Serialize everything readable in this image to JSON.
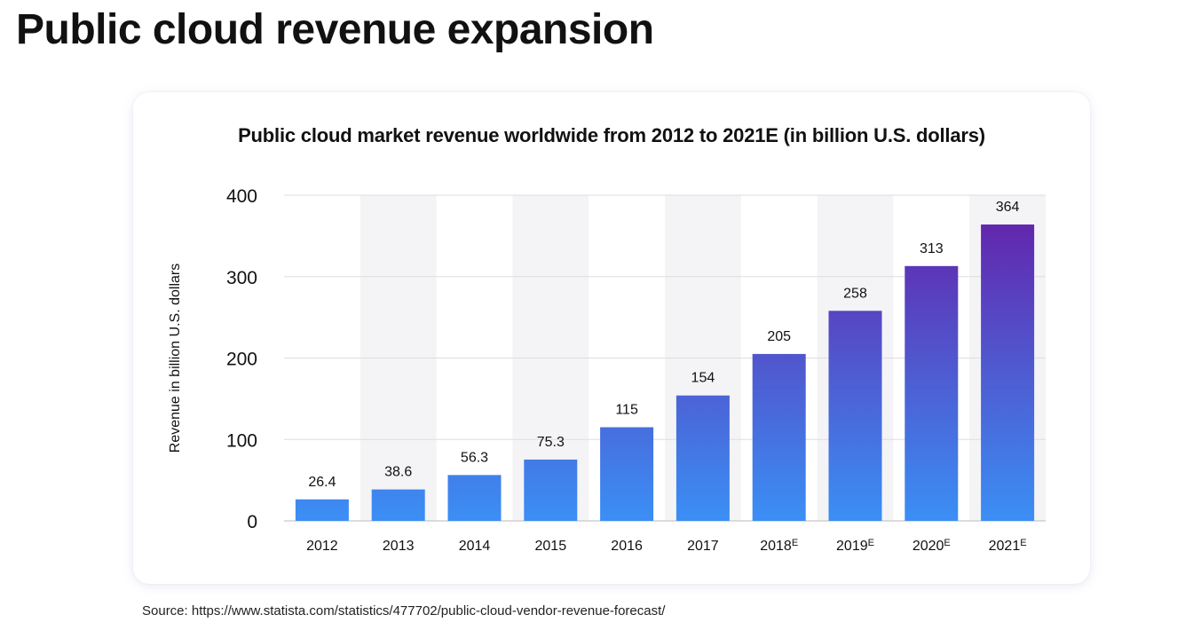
{
  "page": {
    "title": "Public cloud revenue expansion",
    "source": "Source: https://www.statista.com/statistics/477702/public-cloud-vendor-revenue-forecast/"
  },
  "chart_data": {
    "type": "bar",
    "title": "Public cloud market revenue worldwide from 2012 to 2021E (in billion U.S. dollars)",
    "xlabel": "",
    "ylabel": "Revenue in billion U.S. dollars",
    "ylim": [
      0,
      400
    ],
    "yticks": [
      0,
      100,
      200,
      300,
      400
    ],
    "grid": true,
    "categories": [
      "2012",
      "2013",
      "2014",
      "2015",
      "2016",
      "2017",
      "2018",
      "2019",
      "2020",
      "2021"
    ],
    "category_superscripts": [
      "",
      "",
      "",
      "",
      "",
      "",
      "E",
      "E",
      "E",
      "E"
    ],
    "values": [
      26.4,
      38.6,
      56.3,
      75.3,
      115,
      154,
      205,
      258,
      313,
      364
    ],
    "value_labels": [
      "26.4",
      "38.6",
      "56.3",
      "75.3",
      "115",
      "154",
      "205",
      "258",
      "313",
      "364"
    ],
    "colors": {
      "bar_low": "#3b8ff5",
      "bar_high": "#6227ad",
      "band": "#f4f4f6",
      "grid": "#dddddd"
    }
  }
}
